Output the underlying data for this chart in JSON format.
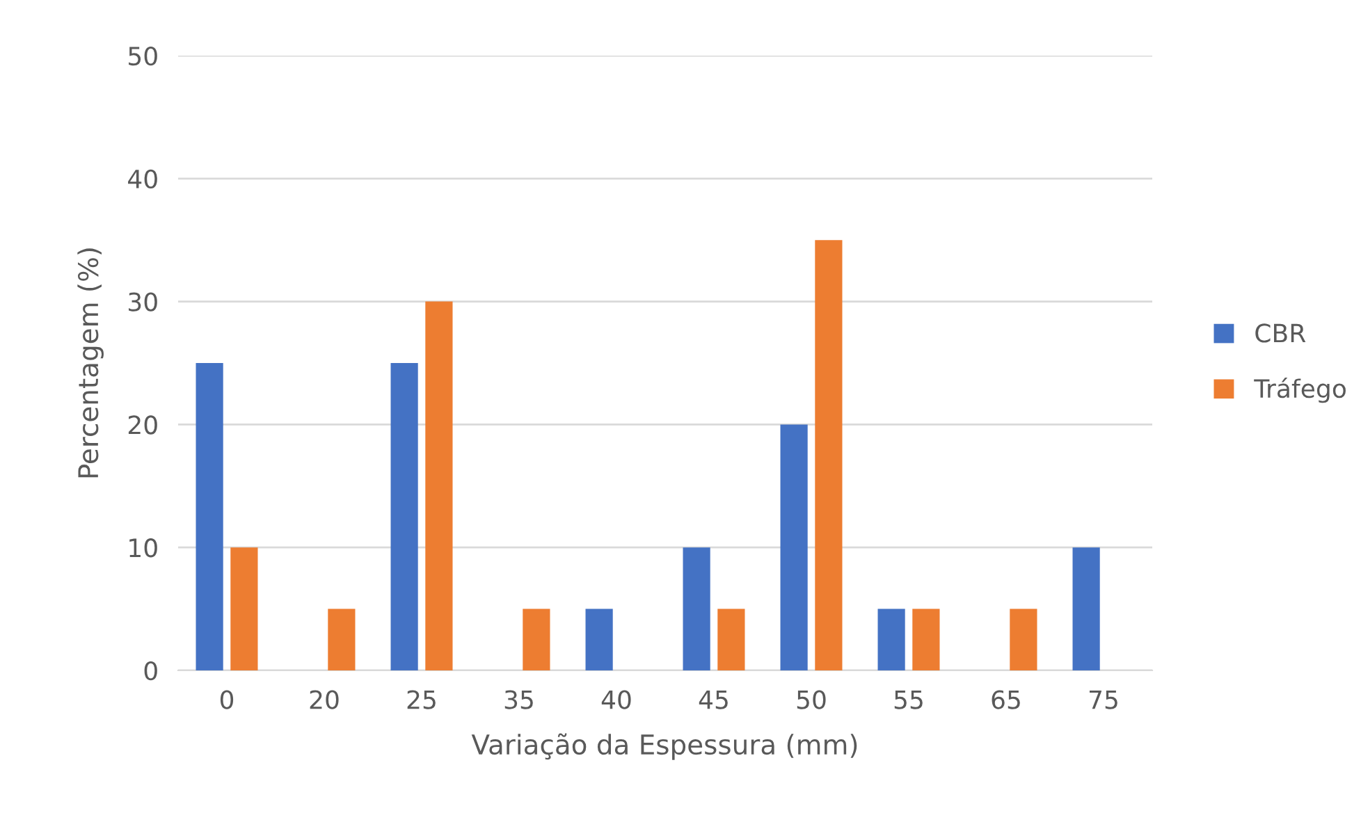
{
  "chart_data": {
    "type": "bar",
    "xlabel": "Variação da Espessura (mm)",
    "ylabel": "Percentagem (%)",
    "categories": [
      "0",
      "20",
      "25",
      "35",
      "40",
      "45",
      "50",
      "55",
      "65",
      "75"
    ],
    "series": [
      {
        "name": "CBR",
        "color": "#4472c4",
        "values": [
          25,
          0,
          25,
          0,
          5,
          10,
          20,
          5,
          0,
          10
        ]
      },
      {
        "name": "Tráfego",
        "color": "#ed7d31",
        "values": [
          10,
          5,
          30,
          5,
          0,
          5,
          35,
          5,
          5,
          0
        ]
      }
    ],
    "ylim": [
      0,
      50
    ],
    "yticks": [
      0,
      10,
      20,
      30,
      40,
      50
    ],
    "grid": "y",
    "legend": "right"
  }
}
